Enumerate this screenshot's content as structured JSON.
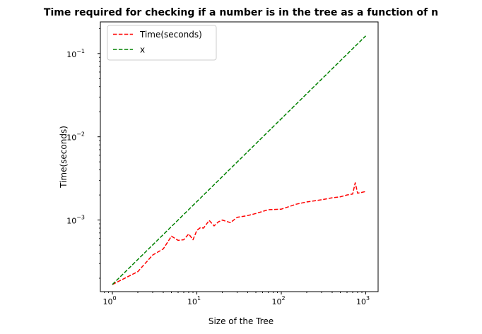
{
  "chart_data": {
    "type": "line",
    "title": "Time required for checking if a number is in the tree as a function of n",
    "xlabel": "Size of the Tree",
    "ylabel": "Time(seconds)",
    "xscale": "log",
    "yscale": "log",
    "xlim": [
      0.72,
      1400
    ],
    "ylim": [
      0.000138,
      0.24
    ],
    "grid": false,
    "legend_position": "top-left",
    "x_ticks": [
      {
        "value": 1,
        "base": "10",
        "exp": "0"
      },
      {
        "value": 10,
        "base": "10",
        "exp": "1"
      },
      {
        "value": 100,
        "base": "10",
        "exp": "2"
      },
      {
        "value": 1000,
        "base": "10",
        "exp": "3"
      }
    ],
    "y_ticks": [
      {
        "value": 0.001,
        "base": "10",
        "exp": "−3"
      },
      {
        "value": 0.01,
        "base": "10",
        "exp": "−2"
      },
      {
        "value": 0.1,
        "base": "10",
        "exp": "−1"
      }
    ],
    "series": [
      {
        "name": "Time(seconds)",
        "color": "#ff0000",
        "style": "dashed",
        "x": [
          1,
          2,
          3,
          4,
          5,
          6,
          7,
          8,
          9,
          10,
          11,
          12,
          14,
          16,
          18,
          20,
          25,
          30,
          40,
          50,
          70,
          100,
          150,
          200,
          300,
          400,
          500,
          600,
          700,
          750,
          800,
          900,
          1000
        ],
        "y": [
          0.000168,
          0.00024,
          0.00038,
          0.00045,
          0.00064,
          0.00057,
          0.00058,
          0.00068,
          0.00058,
          0.00075,
          0.00081,
          0.0008,
          0.00099,
          0.00085,
          0.00095,
          0.001,
          0.00093,
          0.00108,
          0.00113,
          0.0012,
          0.00133,
          0.00135,
          0.00155,
          0.00165,
          0.00175,
          0.00185,
          0.0019,
          0.002,
          0.00205,
          0.0028,
          0.0021,
          0.00215,
          0.0022
        ]
      },
      {
        "name": "x",
        "color": "#008000",
        "style": "dashed",
        "x": [
          1,
          1000
        ],
        "y": [
          0.000168,
          0.163
        ]
      }
    ]
  }
}
